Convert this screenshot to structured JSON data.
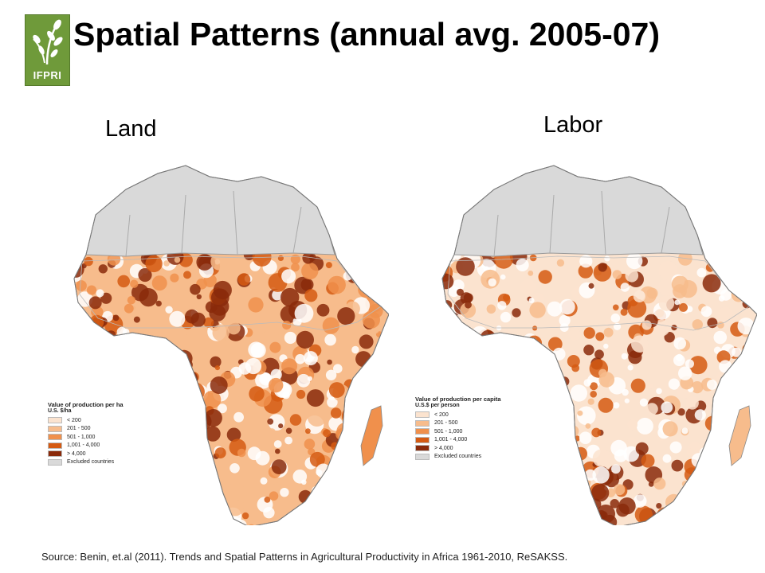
{
  "logo": {
    "text": "IFPRI",
    "color": "#6f9a3a"
  },
  "title": "Spatial Patterns (annual avg. 2005-07)",
  "panels": [
    {
      "label": "Land",
      "legend": {
        "title": "Value of production per ha",
        "units": "U.S. $/ha",
        "classes": [
          {
            "label": "< 200",
            "color": "#fbe3cf"
          },
          {
            "label": "201 - 500",
            "color": "#f7bc8c"
          },
          {
            "label": "501 - 1,000",
            "color": "#f0904c"
          },
          {
            "label": "1,001 - 4,000",
            "color": "#d55a12"
          },
          {
            "label": "> 4,000",
            "color": "#8a2a0a"
          },
          {
            "label": "Excluded countries",
            "color": "#d9d9d9"
          }
        ]
      }
    },
    {
      "label": "Labor",
      "legend": {
        "title": "Value of production per capita",
        "units": "U.S.$ per person",
        "classes": [
          {
            "label": "< 200",
            "color": "#fbe3cf"
          },
          {
            "label": "201 - 500",
            "color": "#f7bc8c"
          },
          {
            "label": "501 - 1,000",
            "color": "#f0904c"
          },
          {
            "label": "1,001 - 4,000",
            "color": "#d55a12"
          },
          {
            "label": "> 4,000",
            "color": "#8a2a0a"
          },
          {
            "label": "Excluded countries",
            "color": "#d9d9d9"
          }
        ]
      }
    }
  ],
  "source": "Source: Benin, et.al (2011). Trends and Spatial Patterns in Agricultural Productivity in Africa 1961-2010, ReSAKSS."
}
